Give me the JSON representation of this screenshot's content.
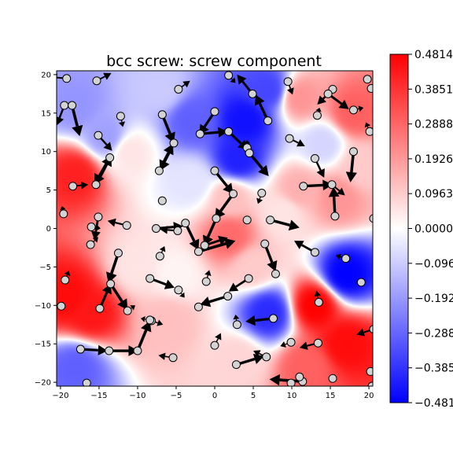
{
  "chart_data": {
    "type": "heatmap",
    "title": "bcc screw: screw component",
    "xlabel": "",
    "ylabel": "",
    "xlim": [
      -20.5,
      20.5
    ],
    "ylim": [
      -20.5,
      20.5
    ],
    "xticks": [
      -20,
      -15,
      -10,
      -5,
      0,
      5,
      10,
      15,
      20
    ],
    "yticks": [
      -20,
      -15,
      -10,
      -5,
      0,
      5,
      10,
      15,
      20
    ],
    "xtick_labels": [
      "−20",
      "−15",
      "−10",
      "−5",
      "0",
      "5",
      "10",
      "15",
      "20"
    ],
    "ytick_labels": [
      "−20",
      "−15",
      "−10",
      "−5",
      "0",
      "5",
      "10",
      "15",
      "20"
    ],
    "grid": false,
    "colormap": "bwr",
    "colorbar": {
      "vmin": -0.4814,
      "vmax": 0.4814,
      "ticks": [
        0.4814,
        0.3851,
        0.2888,
        0.1926,
        0.0963,
        0.0,
        -0.0963,
        -0.1926,
        -0.2888,
        -0.3851,
        -0.4814
      ],
      "tick_labels": [
        "0.4814",
        "0.3851",
        "0.2888",
        "0.1926",
        "0.0963",
        "0.0000",
        "−0.0963",
        "−0.1926",
        "−0.2888",
        "−0.3851",
        "−0.4814"
      ]
    },
    "colors": {
      "positive": "#ff0000",
      "zero": "#ffffff",
      "negative": "#0000ff",
      "atom_fill": "#d3d3d3",
      "arrow": "#000000"
    },
    "field": [
      {
        "x": -18,
        "y": 7,
        "v": 0.42
      },
      {
        "x": -16,
        "y": -11,
        "v": 0.44
      },
      {
        "x": -19,
        "y": -9,
        "v": 0.46
      },
      {
        "x": -18,
        "y": -18,
        "v": -0.3
      },
      {
        "x": 4,
        "y": 14,
        "v": -0.45
      },
      {
        "x": -3,
        "y": 14,
        "v": -0.3
      },
      {
        "x": 3,
        "y": 9,
        "v": -0.42
      },
      {
        "x": 7,
        "y": 18,
        "v": -0.35
      },
      {
        "x": 17,
        "y": -6,
        "v": -0.48
      },
      {
        "x": 7,
        "y": -11,
        "v": -0.4
      },
      {
        "x": 13,
        "y": -10,
        "v": 0.48
      },
      {
        "x": 17,
        "y": -15,
        "v": 0.46
      },
      {
        "x": 16,
        "y": 4,
        "v": 0.2
      },
      {
        "x": 11,
        "y": 5,
        "v": 0.15
      },
      {
        "x": -18,
        "y": 16,
        "v": -0.2
      },
      {
        "x": 2,
        "y": -1,
        "v": 0.28
      },
      {
        "x": -7,
        "y": 18,
        "v": -0.1
      },
      {
        "x": 18,
        "y": 15,
        "v": 0.3
      },
      {
        "x": 11,
        "y": 17,
        "v": 0.2
      },
      {
        "x": -10,
        "y": -5,
        "v": 0.05
      },
      {
        "x": -5,
        "y": -6,
        "v": 0.02
      },
      {
        "x": 2,
        "y": 4,
        "v": 0.12
      },
      {
        "x": -11,
        "y": 10,
        "v": 0.05
      },
      {
        "x": -14,
        "y": 12,
        "v": -0.18
      },
      {
        "x": 5,
        "y": -5,
        "v": 0.1
      },
      {
        "x": 3,
        "y": -17,
        "v": 0.08
      },
      {
        "x": -6,
        "y": -12,
        "v": 0.12
      },
      {
        "x": 12,
        "y": -18,
        "v": 0.3
      },
      {
        "x": 9,
        "y": 2,
        "v": 0.05
      },
      {
        "x": 19,
        "y": 8,
        "v": 0.1
      },
      {
        "x": -3,
        "y": 6,
        "v": -0.05
      },
      {
        "x": 14,
        "y": 11,
        "v": -0.08
      }
    ],
    "atoms": [
      {
        "x": -19.2,
        "y": 19.5
      },
      {
        "x": -15.3,
        "y": 19.2
      },
      {
        "x": -19.5,
        "y": 16
      },
      {
        "x": -18.5,
        "y": 16
      },
      {
        "x": -15.1,
        "y": 12.1
      },
      {
        "x": -12.2,
        "y": 14.6
      },
      {
        "x": -13.6,
        "y": 9.2
      },
      {
        "x": -15.4,
        "y": 5.7
      },
      {
        "x": -19.6,
        "y": 1.9
      },
      {
        "x": -18.4,
        "y": 5.5
      },
      {
        "x": -15.1,
        "y": 1.5
      },
      {
        "x": -16,
        "y": 0.2
      },
      {
        "x": -11.4,
        "y": 0.4
      },
      {
        "x": -7.6,
        "y": 0
      },
      {
        "x": -6.8,
        "y": 3.6
      },
      {
        "x": -4.8,
        "y": -0.3
      },
      {
        "x": -3.8,
        "y": 0.7
      },
      {
        "x": -6.8,
        "y": 14.8
      },
      {
        "x": -5.3,
        "y": 11.1
      },
      {
        "x": -7.2,
        "y": 7.5
      },
      {
        "x": -4.7,
        "y": 18.1
      },
      {
        "x": -1.9,
        "y": 12.3
      },
      {
        "x": 0,
        "y": 15.2
      },
      {
        "x": 1.8,
        "y": 12.6
      },
      {
        "x": 1.8,
        "y": 19.9
      },
      {
        "x": 4.9,
        "y": 17.5
      },
      {
        "x": 6.9,
        "y": 14
      },
      {
        "x": 4.2,
        "y": 10.5
      },
      {
        "x": 4.5,
        "y": 9.8
      },
      {
        "x": 9.5,
        "y": 19.1
      },
      {
        "x": 0,
        "y": 7.5
      },
      {
        "x": 2.4,
        "y": 4.5
      },
      {
        "x": 6.1,
        "y": 4.6
      },
      {
        "x": 0.2,
        "y": 1.3
      },
      {
        "x": -1.3,
        "y": -2.2
      },
      {
        "x": -2.1,
        "y": -3
      },
      {
        "x": 4.2,
        "y": 1.1
      },
      {
        "x": 7.2,
        "y": 1.1
      },
      {
        "x": 6.5,
        "y": -2
      },
      {
        "x": 7.9,
        "y": -5.9
      },
      {
        "x": 4.4,
        "y": -6.5
      },
      {
        "x": 9.7,
        "y": 11.7
      },
      {
        "x": 13.3,
        "y": 14.7
      },
      {
        "x": 13,
        "y": 9.1
      },
      {
        "x": 11.5,
        "y": 5.5
      },
      {
        "x": 15.2,
        "y": 5.7
      },
      {
        "x": 15.6,
        "y": 1.6
      },
      {
        "x": 18,
        "y": 10
      },
      {
        "x": 15.3,
        "y": 18.1
      },
      {
        "x": 14.7,
        "y": 17.5
      },
      {
        "x": 18,
        "y": 15.4
      },
      {
        "x": 19.8,
        "y": 19.4
      },
      {
        "x": 20.3,
        "y": 18.2
      },
      {
        "x": 20.1,
        "y": 12.6
      },
      {
        "x": 20.6,
        "y": 1.3
      },
      {
        "x": 13,
        "y": -3.1
      },
      {
        "x": 17,
        "y": -3.9
      },
      {
        "x": 19,
        "y": -7
      },
      {
        "x": 13.5,
        "y": -9.6
      },
      {
        "x": 7.6,
        "y": -11.7
      },
      {
        "x": 13.4,
        "y": -14.9
      },
      {
        "x": 9.9,
        "y": -14.8
      },
      {
        "x": 6.7,
        "y": -16.7
      },
      {
        "x": 2.8,
        "y": -17.7
      },
      {
        "x": 2.9,
        "y": -12.5
      },
      {
        "x": 1.7,
        "y": -8.8
      },
      {
        "x": 0,
        "y": -15.2
      },
      {
        "x": -2.1,
        "y": -10.2
      },
      {
        "x": -1.1,
        "y": -6.9
      },
      {
        "x": -4.7,
        "y": -8
      },
      {
        "x": -8.4,
        "y": -6.5
      },
      {
        "x": -7.1,
        "y": -3.6
      },
      {
        "x": -8.2,
        "y": -12
      },
      {
        "x": -8.4,
        "y": -11.9
      },
      {
        "x": -10,
        "y": -15.9
      },
      {
        "x": -5.4,
        "y": -16.8
      },
      {
        "x": -11.3,
        "y": -10.7
      },
      {
        "x": -13.5,
        "y": -7.2
      },
      {
        "x": -12.5,
        "y": -3.2
      },
      {
        "x": -14.9,
        "y": -10.4
      },
      {
        "x": -16.1,
        "y": -2.1
      },
      {
        "x": -19.4,
        "y": -6.7
      },
      {
        "x": -19.9,
        "y": -10.1
      },
      {
        "x": -17.4,
        "y": -15.7
      },
      {
        "x": -16.6,
        "y": -20.1
      },
      {
        "x": -13.7,
        "y": -15.9
      },
      {
        "x": 11.4,
        "y": -19.9
      },
      {
        "x": 11,
        "y": -19.3
      },
      {
        "x": 15.3,
        "y": -19.5
      },
      {
        "x": 20.6,
        "y": -13.1
      },
      {
        "x": 20.2,
        "y": -18.6
      },
      {
        "x": 20.4,
        "y": -20.5
      },
      {
        "x": 9.9,
        "y": -20.1
      }
    ],
    "arrows": [
      {
        "x": -19.2,
        "y": 19.5,
        "dx": -2.2,
        "dy": 0.2
      },
      {
        "x": -15.3,
        "y": 19.2,
        "dx": 1.9,
        "dy": 1
      },
      {
        "x": -19.5,
        "y": 16,
        "dx": -1,
        "dy": -2.6
      },
      {
        "x": -18.5,
        "y": 16,
        "dx": 1,
        "dy": -4
      },
      {
        "x": -15.1,
        "y": 12.1,
        "dx": 1.8,
        "dy": -2
      },
      {
        "x": -12.2,
        "y": 14.6,
        "dx": 0.3,
        "dy": -1.4
      },
      {
        "x": -13.6,
        "y": 9.2,
        "dx": -2,
        "dy": -3.5
      },
      {
        "x": -15.4,
        "y": 5.7,
        "dx": 2,
        "dy": 3.8
      },
      {
        "x": -19.6,
        "y": 1.9,
        "dx": -0.2,
        "dy": 1
      },
      {
        "x": -18.4,
        "y": 5.5,
        "dx": 2,
        "dy": 0.2
      },
      {
        "x": -15.1,
        "y": 1.5,
        "dx": -0.5,
        "dy": -3
      },
      {
        "x": -16,
        "y": 0.2,
        "dx": 1.2,
        "dy": -0.2
      },
      {
        "x": -11.4,
        "y": 0.4,
        "dx": -2.5,
        "dy": 0.6
      },
      {
        "x": -7.6,
        "y": 0,
        "dx": 3.5,
        "dy": 0.3
      },
      {
        "x": -6.8,
        "y": 14.8,
        "dx": 1.5,
        "dy": -3.7
      },
      {
        "x": -5.3,
        "y": 11.1,
        "dx": -1.8,
        "dy": -3.6
      },
      {
        "x": -7.2,
        "y": 7.5,
        "dx": 1.8,
        "dy": 3.5
      },
      {
        "x": -1.9,
        "y": 12.3,
        "dx": 3.6,
        "dy": 0.3
      },
      {
        "x": 0,
        "y": 15.2,
        "dx": -2,
        "dy": -3
      },
      {
        "x": 1.8,
        "y": 12.6,
        "dx": 2.5,
        "dy": -2.4
      },
      {
        "x": 4.9,
        "y": 17.5,
        "dx": -2,
        "dy": 2.5
      },
      {
        "x": 6.9,
        "y": 14,
        "dx": -1.6,
        "dy": 3.4
      },
      {
        "x": 4.5,
        "y": 9.8,
        "dx": 2.5,
        "dy": -3
      },
      {
        "x": 4.2,
        "y": 10.5,
        "dx": 0,
        "dy": 1
      },
      {
        "x": 0,
        "y": 7.5,
        "dx": 2.4,
        "dy": -3
      },
      {
        "x": 2.4,
        "y": 4.5,
        "dx": -2.4,
        "dy": -3.3
      },
      {
        "x": 0.2,
        "y": 1.3,
        "dx": -1.6,
        "dy": -3.6
      },
      {
        "x": -1.3,
        "y": -2.2,
        "dx": 3,
        "dy": 1
      },
      {
        "x": -2.1,
        "y": -3,
        "dx": 4.8,
        "dy": 1.4
      },
      {
        "x": -3.8,
        "y": 0.7,
        "dx": 1.7,
        "dy": -3.5
      },
      {
        "x": -4.8,
        "y": -0.3,
        "dx": -2.3,
        "dy": 0.2
      },
      {
        "x": 7.2,
        "y": 1.1,
        "dx": 3.8,
        "dy": -1
      },
      {
        "x": 6.5,
        "y": -2,
        "dx": 1.4,
        "dy": -3.6
      },
      {
        "x": 13,
        "y": -3.1,
        "dx": -2.7,
        "dy": 1.5
      },
      {
        "x": 11.5,
        "y": 5.5,
        "dx": 3.8,
        "dy": 0.2
      },
      {
        "x": 15.2,
        "y": 5.7,
        "dx": 1.7,
        "dy": -1.4
      },
      {
        "x": 15.6,
        "y": 1.6,
        "dx": -0.2,
        "dy": 3.8
      },
      {
        "x": 13,
        "y": 9.1,
        "dx": 1.2,
        "dy": -2.5
      },
      {
        "x": 18,
        "y": 10,
        "dx": -0.4,
        "dy": -4
      },
      {
        "x": 14.7,
        "y": 17.5,
        "dx": 2.7,
        "dy": -2
      },
      {
        "x": 15.3,
        "y": 18.1,
        "dx": -2,
        "dy": -2
      },
      {
        "x": 9.7,
        "y": 11.7,
        "dx": 2,
        "dy": -1
      },
      {
        "x": 18,
        "y": 15.4,
        "dx": 1.3,
        "dy": 0.3
      },
      {
        "x": 7.6,
        "y": -11.7,
        "dx": -3.6,
        "dy": -0.4
      },
      {
        "x": 4.4,
        "y": -6.5,
        "dx": -2.6,
        "dy": -1.7
      },
      {
        "x": 1.7,
        "y": -8.8,
        "dx": -3.6,
        "dy": -1.1
      },
      {
        "x": 2.8,
        "y": -17.7,
        "dx": 3.6,
        "dy": 1.1
      },
      {
        "x": -8.4,
        "y": -6.5,
        "dx": 3.2,
        "dy": -1.2
      },
      {
        "x": -10,
        "y": -15.9,
        "dx": 1.6,
        "dy": 3.9
      },
      {
        "x": -13.7,
        "y": -15.9,
        "dx": 3.8,
        "dy": 0
      },
      {
        "x": -17.4,
        "y": -15.7,
        "dx": 3.5,
        "dy": -0.2
      },
      {
        "x": -13.5,
        "y": -7.2,
        "dx": 2.2,
        "dy": -3.4
      },
      {
        "x": -14.9,
        "y": -10.4,
        "dx": 1.4,
        "dy": 3.2
      },
      {
        "x": -12.5,
        "y": -3.2,
        "dx": -1.3,
        "dy": -3.9
      },
      {
        "x": -19.4,
        "y": -6.7,
        "dx": 0.5,
        "dy": 1.2
      },
      {
        "x": -8.2,
        "y": -12,
        "dx": 1.5,
        "dy": -0.5
      },
      {
        "x": -7.1,
        "y": -3.6,
        "dx": 0.6,
        "dy": 1.3
      },
      {
        "x": 20.6,
        "y": -13.1,
        "dx": -2.2,
        "dy": -0.7
      },
      {
        "x": 11.4,
        "y": -19.9,
        "dx": -4.3,
        "dy": 0.3
      },
      {
        "x": 13.4,
        "y": -14.9,
        "dx": -2.4,
        "dy": -0.6
      },
      {
        "x": 13.5,
        "y": -9.6,
        "dx": -0.3,
        "dy": 1.5
      },
      {
        "x": 0,
        "y": -15.2,
        "dx": 0.8,
        "dy": 1.6
      },
      {
        "x": -5.4,
        "y": -16.8,
        "dx": -1.9,
        "dy": 0.3
      },
      {
        "x": -16.1,
        "y": -2.1,
        "dx": 1,
        "dy": 1
      },
      {
        "x": 13.3,
        "y": 14.7,
        "dx": 0.3,
        "dy": 1
      },
      {
        "x": 20.1,
        "y": 12.6,
        "dx": -0.5,
        "dy": 1.2
      },
      {
        "x": -1.1,
        "y": -6.9,
        "dx": 0.4,
        "dy": 1.5
      },
      {
        "x": -4.7,
        "y": -8,
        "dx": 0.8,
        "dy": -1
      },
      {
        "x": 2.9,
        "y": -12.5,
        "dx": -0.2,
        "dy": 1.3
      },
      {
        "x": 9.9,
        "y": -14.8,
        "dx": -1.4,
        "dy": -0.5
      },
      {
        "x": -8.4,
        "y": -11.9,
        "dx": -1.2,
        "dy": 0.2
      },
      {
        "x": 6.7,
        "y": -16.7,
        "dx": -1.7,
        "dy": 0.8
      },
      {
        "x": 17,
        "y": -3.9,
        "dx": -1.3,
        "dy": 0.4
      },
      {
        "x": 9.5,
        "y": 19.1,
        "dx": 0.6,
        "dy": -1.7
      },
      {
        "x": -11.3,
        "y": -10.7,
        "dx": 1,
        "dy": 0.7
      },
      {
        "x": 6.1,
        "y": 4.6,
        "dx": -0.5,
        "dy": -1.4
      },
      {
        "x": -4.7,
        "y": 18.1,
        "dx": 1.5,
        "dy": 1.1
      },
      {
        "x": 1.8,
        "y": 19.9,
        "dx": 0.9,
        "dy": -1
      }
    ]
  }
}
